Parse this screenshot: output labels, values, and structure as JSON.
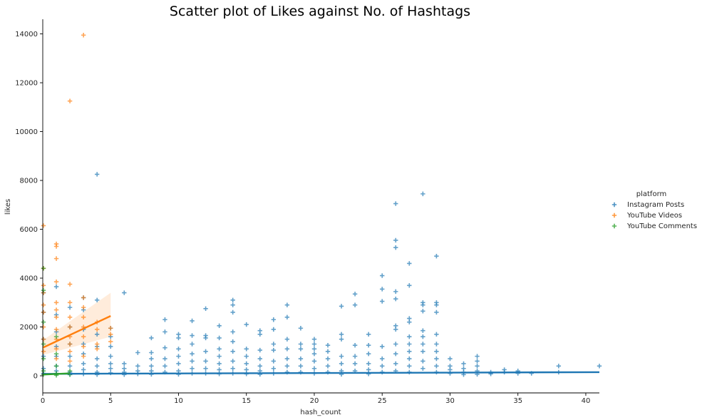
{
  "chart_data": {
    "type": "scatter",
    "title": "Scatter plot of Likes against No. of Hashtags",
    "xlabel": "hash_count",
    "ylabel": "likes",
    "xlim": [
      0,
      41
    ],
    "ylim": [
      -700,
      14600
    ],
    "x_ticks": [
      0,
      5,
      10,
      15,
      20,
      25,
      30,
      35,
      40
    ],
    "y_ticks": [
      0,
      2000,
      4000,
      6000,
      8000,
      10000,
      12000,
      14000
    ],
    "marker": "+",
    "grid": false,
    "legend_placement": "right",
    "legend_title": "platform",
    "series": [
      {
        "name": "Instagram Posts",
        "color": "#1f77b4",
        "points": [
          [
            0,
            3400
          ],
          [
            0,
            2600
          ],
          [
            0,
            1500
          ],
          [
            0,
            800
          ],
          [
            0,
            300
          ],
          [
            0,
            100
          ],
          [
            1,
            3650
          ],
          [
            1,
            2500
          ],
          [
            1,
            1800
          ],
          [
            1,
            1200
          ],
          [
            1,
            800
          ],
          [
            1,
            400
          ],
          [
            1,
            200
          ],
          [
            1,
            80
          ],
          [
            2,
            2800
          ],
          [
            2,
            2000
          ],
          [
            2,
            1300
          ],
          [
            2,
            800
          ],
          [
            2,
            400
          ],
          [
            2,
            150
          ],
          [
            2,
            50
          ],
          [
            3,
            3200
          ],
          [
            3,
            2700
          ],
          [
            3,
            1900
          ],
          [
            3,
            1300
          ],
          [
            3,
            900
          ],
          [
            3,
            500
          ],
          [
            3,
            250
          ],
          [
            3,
            80
          ],
          [
            4,
            8250
          ],
          [
            4,
            3100
          ],
          [
            4,
            1700
          ],
          [
            4,
            1200
          ],
          [
            4,
            700
          ],
          [
            4,
            400
          ],
          [
            4,
            150
          ],
          [
            4,
            50
          ],
          [
            5,
            1950
          ],
          [
            5,
            1600
          ],
          [
            5,
            1200
          ],
          [
            5,
            800
          ],
          [
            5,
            500
          ],
          [
            5,
            300
          ],
          [
            5,
            120
          ],
          [
            6,
            3400
          ],
          [
            6,
            500
          ],
          [
            6,
            300
          ],
          [
            6,
            150
          ],
          [
            6,
            50
          ],
          [
            7,
            950
          ],
          [
            7,
            400
          ],
          [
            7,
            200
          ],
          [
            7,
            80
          ],
          [
            8,
            1550
          ],
          [
            8,
            950
          ],
          [
            8,
            700
          ],
          [
            8,
            400
          ],
          [
            8,
            200
          ],
          [
            8,
            60
          ],
          [
            9,
            2300
          ],
          [
            9,
            1800
          ],
          [
            9,
            1150
          ],
          [
            9,
            700
          ],
          [
            9,
            400
          ],
          [
            9,
            150
          ],
          [
            10,
            1700
          ],
          [
            10,
            1550
          ],
          [
            10,
            1100
          ],
          [
            10,
            800
          ],
          [
            10,
            500
          ],
          [
            10,
            200
          ],
          [
            10,
            60
          ],
          [
            11,
            2250
          ],
          [
            11,
            1650
          ],
          [
            11,
            1300
          ],
          [
            11,
            900
          ],
          [
            11,
            600
          ],
          [
            11,
            300
          ],
          [
            11,
            100
          ],
          [
            12,
            2750
          ],
          [
            12,
            1650
          ],
          [
            12,
            1550
          ],
          [
            12,
            1000
          ],
          [
            12,
            600
          ],
          [
            12,
            300
          ],
          [
            12,
            100
          ],
          [
            13,
            2050
          ],
          [
            13,
            1550
          ],
          [
            13,
            1100
          ],
          [
            13,
            800
          ],
          [
            13,
            500
          ],
          [
            13,
            250
          ],
          [
            13,
            80
          ],
          [
            14,
            3100
          ],
          [
            14,
            2900
          ],
          [
            14,
            2600
          ],
          [
            14,
            1800
          ],
          [
            14,
            1400
          ],
          [
            14,
            1000
          ],
          [
            14,
            600
          ],
          [
            14,
            300
          ],
          [
            14,
            100
          ],
          [
            15,
            2100
          ],
          [
            15,
            1100
          ],
          [
            15,
            800
          ],
          [
            15,
            500
          ],
          [
            15,
            250
          ],
          [
            15,
            80
          ],
          [
            16,
            1850
          ],
          [
            16,
            1700
          ],
          [
            16,
            1050
          ],
          [
            16,
            700
          ],
          [
            16,
            400
          ],
          [
            16,
            200
          ],
          [
            16,
            60
          ],
          [
            17,
            2300
          ],
          [
            17,
            1900
          ],
          [
            17,
            1300
          ],
          [
            17,
            1050
          ],
          [
            17,
            600
          ],
          [
            17,
            300
          ],
          [
            17,
            100
          ],
          [
            18,
            2900
          ],
          [
            18,
            2400
          ],
          [
            18,
            1500
          ],
          [
            18,
            1100
          ],
          [
            18,
            700
          ],
          [
            18,
            400
          ],
          [
            18,
            150
          ],
          [
            19,
            1950
          ],
          [
            19,
            1300
          ],
          [
            19,
            1100
          ],
          [
            19,
            700
          ],
          [
            19,
            400
          ],
          [
            19,
            150
          ],
          [
            20,
            1500
          ],
          [
            20,
            1300
          ],
          [
            20,
            1100
          ],
          [
            20,
            900
          ],
          [
            20,
            600
          ],
          [
            20,
            300
          ],
          [
            20,
            100
          ],
          [
            21,
            1250
          ],
          [
            21,
            1000
          ],
          [
            21,
            700
          ],
          [
            21,
            400
          ],
          [
            21,
            150
          ],
          [
            22,
            2850
          ],
          [
            22,
            1700
          ],
          [
            22,
            1500
          ],
          [
            22,
            800
          ],
          [
            22,
            500
          ],
          [
            22,
            200
          ],
          [
            22,
            60
          ],
          [
            23,
            3350
          ],
          [
            23,
            2900
          ],
          [
            23,
            1250
          ],
          [
            23,
            800
          ],
          [
            23,
            500
          ],
          [
            23,
            200
          ],
          [
            24,
            1700
          ],
          [
            24,
            1250
          ],
          [
            24,
            900
          ],
          [
            24,
            500
          ],
          [
            24,
            250
          ],
          [
            24,
            80
          ],
          [
            25,
            4100
          ],
          [
            25,
            3550
          ],
          [
            25,
            3050
          ],
          [
            25,
            1200
          ],
          [
            25,
            700
          ],
          [
            25,
            400
          ],
          [
            25,
            150
          ],
          [
            26,
            7050
          ],
          [
            26,
            5550
          ],
          [
            26,
            5250
          ],
          [
            26,
            3450
          ],
          [
            26,
            3150
          ],
          [
            26,
            2050
          ],
          [
            26,
            1900
          ],
          [
            26,
            1300
          ],
          [
            26,
            900
          ],
          [
            26,
            500
          ],
          [
            26,
            200
          ],
          [
            27,
            4600
          ],
          [
            27,
            3700
          ],
          [
            27,
            2350
          ],
          [
            27,
            2200
          ],
          [
            27,
            1600
          ],
          [
            27,
            1300
          ],
          [
            27,
            1000
          ],
          [
            27,
            700
          ],
          [
            27,
            400
          ],
          [
            27,
            150
          ],
          [
            28,
            7450
          ],
          [
            28,
            3000
          ],
          [
            28,
            2900
          ],
          [
            28,
            2650
          ],
          [
            28,
            1850
          ],
          [
            28,
            1600
          ],
          [
            28,
            1300
          ],
          [
            28,
            1000
          ],
          [
            28,
            600
          ],
          [
            28,
            300
          ],
          [
            29,
            4900
          ],
          [
            29,
            3000
          ],
          [
            29,
            2900
          ],
          [
            29,
            2600
          ],
          [
            29,
            1700
          ],
          [
            29,
            1300
          ],
          [
            29,
            1000
          ],
          [
            29,
            700
          ],
          [
            29,
            400
          ],
          [
            29,
            150
          ],
          [
            30,
            700
          ],
          [
            30,
            400
          ],
          [
            30,
            250
          ],
          [
            30,
            100
          ],
          [
            31,
            500
          ],
          [
            31,
            300
          ],
          [
            31,
            150
          ],
          [
            31,
            50
          ],
          [
            32,
            800
          ],
          [
            32,
            600
          ],
          [
            32,
            400
          ],
          [
            32,
            200
          ],
          [
            32,
            60
          ],
          [
            33,
            150
          ],
          [
            33,
            80
          ],
          [
            34,
            250
          ],
          [
            34,
            150
          ],
          [
            35,
            200
          ],
          [
            35,
            100
          ],
          [
            36,
            100
          ],
          [
            38,
            400
          ],
          [
            38,
            150
          ],
          [
            41,
            400
          ]
        ],
        "trend": [
          [
            0,
            80
          ],
          [
            41,
            150
          ]
        ]
      },
      {
        "name": "YouTube Videos",
        "color": "#ff7f0e",
        "points": [
          [
            0,
            6150
          ],
          [
            0,
            4400
          ],
          [
            0,
            3700
          ],
          [
            0,
            3400
          ],
          [
            0,
            2900
          ],
          [
            0,
            2600
          ],
          [
            0,
            2000
          ],
          [
            0,
            1500
          ],
          [
            0,
            1000
          ],
          [
            1,
            5400
          ],
          [
            1,
            5300
          ],
          [
            1,
            4800
          ],
          [
            1,
            3850
          ],
          [
            1,
            3000
          ],
          [
            1,
            2700
          ],
          [
            1,
            2400
          ],
          [
            1,
            1900
          ],
          [
            1,
            1500
          ],
          [
            1,
            1100
          ],
          [
            1,
            700
          ],
          [
            2,
            11250
          ],
          [
            2,
            3750
          ],
          [
            2,
            3000
          ],
          [
            2,
            2400
          ],
          [
            2,
            2000
          ],
          [
            2,
            1600
          ],
          [
            2,
            1300
          ],
          [
            2,
            1000
          ],
          [
            2,
            600
          ],
          [
            3,
            13950
          ],
          [
            3,
            3200
          ],
          [
            3,
            2800
          ],
          [
            3,
            2400
          ],
          [
            3,
            2000
          ],
          [
            3,
            1600
          ],
          [
            3,
            1200
          ],
          [
            3,
            800
          ],
          [
            4,
            2200
          ],
          [
            4,
            1900
          ],
          [
            4,
            1300
          ],
          [
            4,
            1100
          ],
          [
            5,
            1950
          ],
          [
            5,
            1700
          ],
          [
            5,
            1400
          ]
        ],
        "trend": [
          [
            0,
            1150
          ],
          [
            5,
            2450
          ]
        ],
        "band_upper": [
          [
            0,
            1450
          ],
          [
            5,
            3400
          ]
        ],
        "band_lower": [
          [
            0,
            850
          ],
          [
            5,
            1600
          ]
        ]
      },
      {
        "name": "YouTube Comments",
        "color": "#2ca02c",
        "points": [
          [
            0,
            4400
          ],
          [
            0,
            3500
          ],
          [
            0,
            2200
          ],
          [
            0,
            1300
          ],
          [
            0,
            700
          ],
          [
            0,
            200
          ],
          [
            0,
            50
          ],
          [
            1,
            1600
          ],
          [
            1,
            900
          ],
          [
            1,
            400
          ],
          [
            1,
            100
          ],
          [
            1,
            20
          ],
          [
            2,
            200
          ],
          [
            2,
            50
          ]
        ],
        "trend": [
          [
            0,
            50
          ],
          [
            2,
            100
          ]
        ]
      }
    ]
  }
}
